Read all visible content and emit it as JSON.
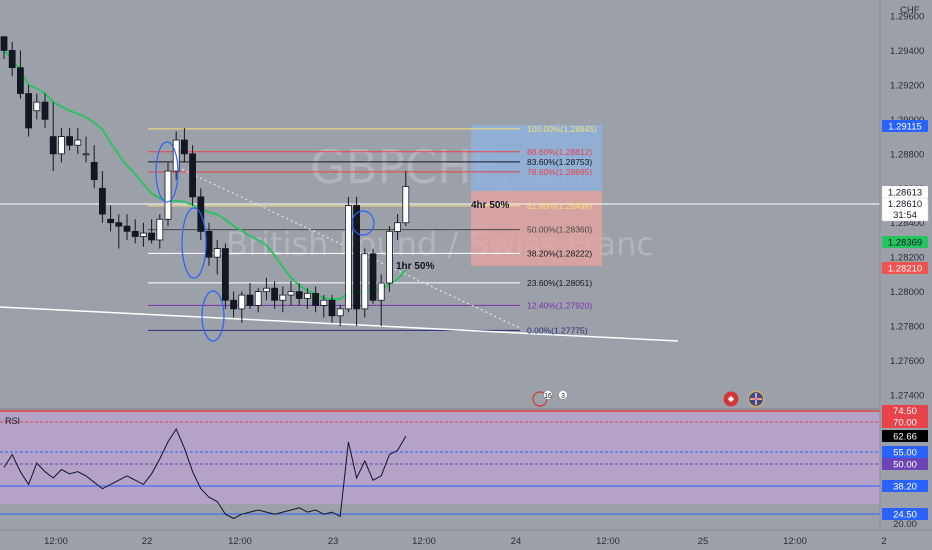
{
  "watermark": {
    "symbol": "GBPCHF, 1h",
    "description": "British Pound / Swiss Franc"
  },
  "currency_label": "CHF",
  "price_axis": {
    "ticks": [
      "1.29600",
      "1.29400",
      "1.29200",
      "1.29000",
      "1.28800",
      "1.28600",
      "1.28400",
      "1.28200",
      "1.28000",
      "1.27800",
      "1.27600",
      "1.27400"
    ]
  },
  "price_tags": {
    "high_tag": "1.29115",
    "prev_tag": "1.28613",
    "last_price": "1.28610",
    "countdown": "31:54",
    "ma_tag": "1.28369",
    "ask_tag": "1.28210"
  },
  "time_axis": {
    "labels": [
      "12:00",
      "22",
      "12:00",
      "23",
      "12:00",
      "24",
      "12:00",
      "25",
      "12:00",
      "2"
    ]
  },
  "fib_levels": [
    {
      "label": "100.00%(1.28945)",
      "color": "#f7e07a"
    },
    {
      "label": "88.60%(1.28812)",
      "color": "#e8434a"
    },
    {
      "label": "83.60%(1.28753)",
      "color": "#131722"
    },
    {
      "label": "78.60%(1.28695)",
      "color": "#e8434a"
    },
    {
      "label": "61.80%(1.28498)",
      "color": "#f7e07a"
    },
    {
      "label": "50.00%(1.28360)",
      "color": "#4a4a4a"
    },
    {
      "label": "38.20%(1.28222)",
      "color": "#ffffff"
    },
    {
      "label": "23.60%(1.28051)",
      "color": "#ffffff"
    },
    {
      "label": "12.40%(1.27920)",
      "color": "#7b2fb0"
    },
    {
      "label": "0.00%(1.27775)",
      "color": "#2d2f7a"
    }
  ],
  "annotations": {
    "four_hour": "4hr 50%",
    "one_hour": "1hr 50%"
  },
  "events": {
    "badge_count_a": "16",
    "badge_count_b": "3"
  },
  "rsi": {
    "label": "RSI",
    "upper_band_tag": "70.00",
    "top_tag": "74.50",
    "value_tag": "62.66",
    "level_55": "55.00",
    "level_50": "50.00",
    "level_38": "38.20",
    "level_24": "24.50",
    "bottom_tick": "20.00"
  },
  "colors": {
    "background": "#9ca0a8",
    "bull": "#ffffff",
    "bear": "#131722",
    "ma": "#22c55e",
    "rsi_fill": "#b8a2cf",
    "rsi_line": "#131722",
    "rsi_70": "#e8434a",
    "ask_red": "#ef5350",
    "ma_green": "#22c55e",
    "blue_tag": "#2962ff",
    "purple_tag": "#6c44b5"
  },
  "chart_data": {
    "type": "candlestick",
    "symbol": "GBPCHF",
    "timeframe": "1h",
    "ylim": [
      1.274,
      1.2965
    ],
    "ohlc": [
      [
        1.2948,
        1.2948,
        1.2935,
        1.294
      ],
      [
        1.294,
        1.2945,
        1.2925,
        1.293
      ],
      [
        1.293,
        1.294,
        1.2912,
        1.2915
      ],
      [
        1.2915,
        1.292,
        1.289,
        1.2895
      ],
      [
        1.2905,
        1.2915,
        1.29,
        1.291
      ],
      [
        1.291,
        1.2915,
        1.2895,
        1.29
      ],
      [
        1.289,
        1.291,
        1.287,
        1.288
      ],
      [
        1.288,
        1.2895,
        1.2875,
        1.289
      ],
      [
        1.289,
        1.2895,
        1.2882,
        1.2885
      ],
      [
        1.2885,
        1.2895,
        1.288,
        1.2888
      ],
      [
        1.288,
        1.289,
        1.2875,
        1.288
      ],
      [
        1.2875,
        1.2885,
        1.286,
        1.2865
      ],
      [
        1.286,
        1.287,
        1.284,
        1.2845
      ],
      [
        1.2842,
        1.285,
        1.2835,
        1.284
      ],
      [
        1.284,
        1.2845,
        1.2825,
        1.2838
      ],
      [
        1.2838,
        1.2845,
        1.283,
        1.2835
      ],
      [
        1.2835,
        1.2842,
        1.2828,
        1.2832
      ],
      [
        1.2832,
        1.284,
        1.2826,
        1.2834
      ],
      [
        1.2834,
        1.2842,
        1.2828,
        1.283
      ],
      [
        1.283,
        1.2845,
        1.2825,
        1.2842
      ],
      [
        1.2842,
        1.2875,
        1.2838,
        1.287
      ],
      [
        1.287,
        1.2893,
        1.2865,
        1.2888
      ],
      [
        1.2888,
        1.2895,
        1.2875,
        1.288
      ],
      [
        1.288,
        1.2885,
        1.285,
        1.2855
      ],
      [
        1.2855,
        1.286,
        1.283,
        1.2835
      ],
      [
        1.2835,
        1.284,
        1.2815,
        1.282
      ],
      [
        1.282,
        1.283,
        1.281,
        1.2825
      ],
      [
        1.2825,
        1.2828,
        1.279,
        1.2795
      ],
      [
        1.2795,
        1.28,
        1.2785,
        1.279
      ],
      [
        1.279,
        1.28,
        1.2782,
        1.2798
      ],
      [
        1.2798,
        1.2805,
        1.279,
        1.2792
      ],
      [
        1.2792,
        1.2802,
        1.2788,
        1.28
      ],
      [
        1.28,
        1.2808,
        1.2795,
        1.2802
      ],
      [
        1.2802,
        1.2806,
        1.279,
        1.2795
      ],
      [
        1.2795,
        1.2803,
        1.2788,
        1.2798
      ],
      [
        1.2798,
        1.2806,
        1.2792,
        1.28
      ],
      [
        1.28,
        1.2805,
        1.2792,
        1.2796
      ],
      [
        1.2796,
        1.2802,
        1.279,
        1.2799
      ],
      [
        1.2799,
        1.2803,
        1.2788,
        1.2792
      ],
      [
        1.2792,
        1.2798,
        1.2785,
        1.2795
      ],
      [
        1.2795,
        1.2798,
        1.2782,
        1.2786
      ],
      [
        1.2786,
        1.2792,
        1.278,
        1.279
      ],
      [
        1.279,
        1.2855,
        1.2788,
        1.285
      ],
      [
        1.285,
        1.2855,
        1.278,
        1.279
      ],
      [
        1.279,
        1.2825,
        1.2785,
        1.2822
      ],
      [
        1.2822,
        1.2825,
        1.2793,
        1.2795
      ],
      [
        1.2795,
        1.281,
        1.278,
        1.2805
      ],
      [
        1.2805,
        1.2838,
        1.28,
        1.2835
      ],
      [
        1.2835,
        1.2845,
        1.283,
        1.284
      ],
      [
        1.284,
        1.287,
        1.2838,
        1.2861
      ]
    ]
  }
}
